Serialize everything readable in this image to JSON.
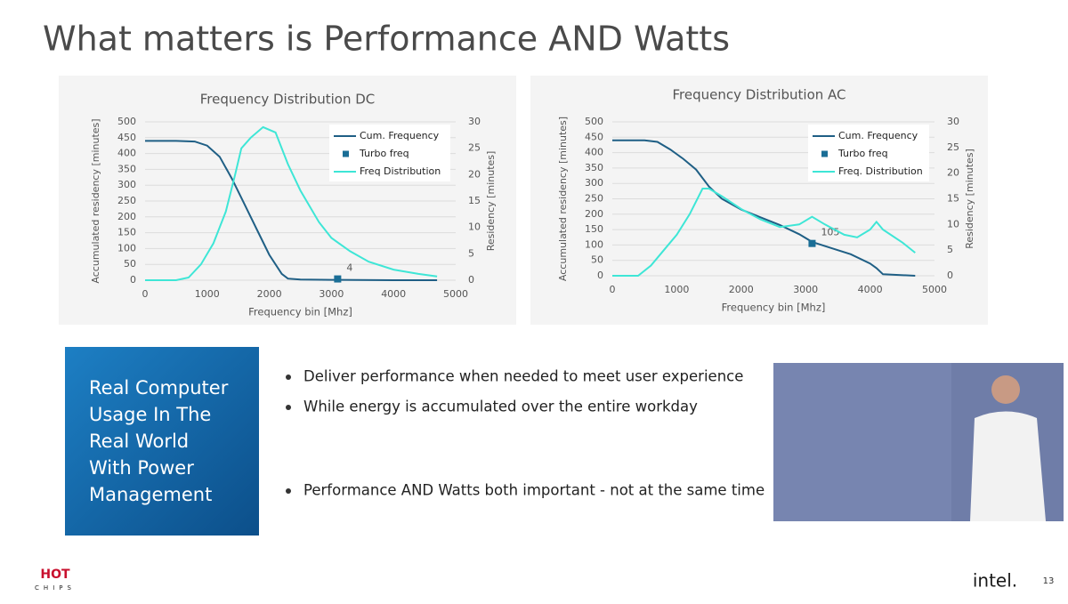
{
  "slide_title": "What matters is Performance AND Watts",
  "chart_data": [
    {
      "type": "line",
      "title": "Frequency Distribution DC",
      "x_label": "Frequency bin [Mhz]",
      "y_label": "Accumulated residency [minutes]",
      "y2_label": "Residency [minutes]",
      "xlim": [
        0,
        5000
      ],
      "xticks": [
        0,
        1000,
        2000,
        3000,
        4000,
        5000
      ],
      "ylim": [
        0,
        500
      ],
      "yticks": [
        0,
        50,
        100,
        150,
        200,
        250,
        300,
        350,
        400,
        450,
        500
      ],
      "y2lim": [
        0,
        30
      ],
      "y2ticks": [
        0,
        5,
        10,
        15,
        20,
        25,
        30
      ],
      "grid": true,
      "legend": "upper right",
      "series": [
        {
          "name": "Cum. Frequency",
          "color": "#1f5f85",
          "marker": "none",
          "x": [
            0,
            500,
            800,
            1000,
            1200,
            1400,
            1600,
            1800,
            2000,
            2200,
            2300,
            2500,
            3000,
            4000,
            4700
          ],
          "values": [
            440,
            440,
            438,
            425,
            390,
            320,
            240,
            160,
            80,
            20,
            5,
            2,
            1,
            0,
            0
          ]
        },
        {
          "name": "Turbo freq",
          "color": "#1a6e96",
          "marker": "square",
          "x": [
            3100
          ],
          "values": [
            4
          ]
        },
        {
          "name": "Freq Distribution",
          "color": "#3ee6d6",
          "marker": "none",
          "axis": "y2",
          "x": [
            0,
            500,
            700,
            900,
            1100,
            1300,
            1450,
            1550,
            1700,
            1900,
            2100,
            2300,
            2500,
            2800,
            3000,
            3300,
            3600,
            4000,
            4400,
            4700
          ],
          "values": [
            0,
            0,
            0.5,
            3,
            7,
            13,
            20,
            25,
            27,
            29,
            28,
            22,
            17,
            11,
            8,
            5.5,
            3.5,
            2,
            1.2,
            0.7
          ]
        }
      ]
    },
    {
      "type": "line",
      "title": "Frequency Distribution AC",
      "x_label": "Frequency bin [Mhz]",
      "y_label": "Accumulated residency [minutes]",
      "y2_label": "Residency [minutes]",
      "xlim": [
        0,
        5000
      ],
      "xticks": [
        0,
        1000,
        2000,
        3000,
        4000,
        5000
      ],
      "ylim": [
        0,
        500
      ],
      "yticks": [
        0,
        50,
        100,
        150,
        200,
        250,
        300,
        350,
        400,
        450,
        500
      ],
      "y2lim": [
        0,
        30
      ],
      "y2ticks": [
        0,
        5,
        10,
        15,
        20,
        25,
        30
      ],
      "grid": true,
      "legend": "upper right",
      "series": [
        {
          "name": "Cum. Frequency",
          "color": "#1f5f85",
          "marker": "none",
          "x": [
            0,
            500,
            700,
            900,
            1100,
            1300,
            1500,
            1700,
            2000,
            2300,
            2600,
            2900,
            3100,
            3400,
            3700,
            4000,
            4100,
            4200,
            4700
          ],
          "values": [
            440,
            440,
            435,
            410,
            380,
            345,
            290,
            250,
            215,
            190,
            165,
            135,
            110,
            90,
            70,
            40,
            25,
            5,
            0
          ]
        },
        {
          "name": "Turbo freq",
          "color": "#1a6e96",
          "marker": "square",
          "x": [
            3100
          ],
          "values": [
            105
          ]
        },
        {
          "name": "Freq. Distribution",
          "color": "#3ee6d6",
          "marker": "none",
          "axis": "y2",
          "x": [
            0,
            400,
            600,
            800,
            1000,
            1200,
            1400,
            1500,
            1700,
            2000,
            2300,
            2600,
            2900,
            3100,
            3300,
            3600,
            3800,
            4000,
            4100,
            4200,
            4500,
            4700
          ],
          "values": [
            0,
            0,
            2,
            5,
            8,
            12,
            17,
            17,
            15.5,
            13,
            11,
            9.5,
            10,
            11.5,
            10,
            8,
            7.5,
            9,
            10.5,
            9,
            6.5,
            4.5
          ]
        }
      ]
    }
  ],
  "box_lines": [
    "Real Computer",
    "Usage In The",
    "Real World",
    "With Power",
    "Management"
  ],
  "bullets": [
    "Deliver performance when needed to meet user experience",
    "While energy is accumulated over the entire workday",
    "Performance AND Watts both important - not at the same time"
  ],
  "footer": {
    "logo_top": "HOT",
    "logo_bottom": "CHIPS",
    "brand": "intel.",
    "page": "13"
  }
}
